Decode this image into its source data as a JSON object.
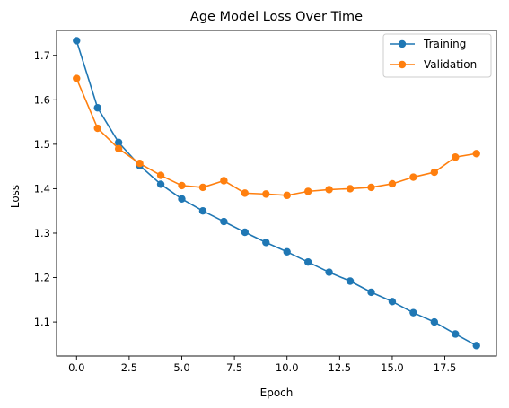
{
  "chart_data": {
    "type": "line",
    "title": "Age Model Loss Over Time",
    "xlabel": "Epoch",
    "ylabel": "Loss",
    "xlim": [
      -0.95,
      19.95
    ],
    "ylim": [
      1.0235,
      1.756
    ],
    "xticks": [
      0.0,
      2.5,
      5.0,
      7.5,
      10.0,
      12.5,
      15.0,
      17.5
    ],
    "xtick_labels": [
      "0.0",
      "2.5",
      "5.0",
      "7.5",
      "10.0",
      "12.5",
      "15.0",
      "17.5"
    ],
    "yticks": [
      1.1,
      1.2,
      1.3,
      1.4,
      1.5,
      1.6,
      1.7
    ],
    "ytick_labels": [
      "1.1",
      "1.2",
      "1.3",
      "1.4",
      "1.5",
      "1.6",
      "1.7"
    ],
    "grid": false,
    "legend_position": "top-right",
    "x": [
      0,
      1,
      2,
      3,
      4,
      5,
      6,
      7,
      8,
      9,
      10,
      11,
      12,
      13,
      14,
      15,
      16,
      17,
      18,
      19
    ],
    "series": [
      {
        "name": "Training",
        "color": "#1f77b4",
        "values": [
          1.733,
          1.582,
          1.504,
          1.452,
          1.41,
          1.377,
          1.35,
          1.326,
          1.302,
          1.279,
          1.258,
          1.235,
          1.212,
          1.192,
          1.167,
          1.146,
          1.121,
          1.1,
          1.073,
          1.047
        ]
      },
      {
        "name": "Validation",
        "color": "#ff7f0e",
        "values": [
          1.648,
          1.536,
          1.49,
          1.457,
          1.43,
          1.407,
          1.403,
          1.418,
          1.39,
          1.388,
          1.385,
          1.394,
          1.398,
          1.4,
          1.403,
          1.411,
          1.426,
          1.437,
          1.471,
          1.479
        ]
      }
    ]
  }
}
